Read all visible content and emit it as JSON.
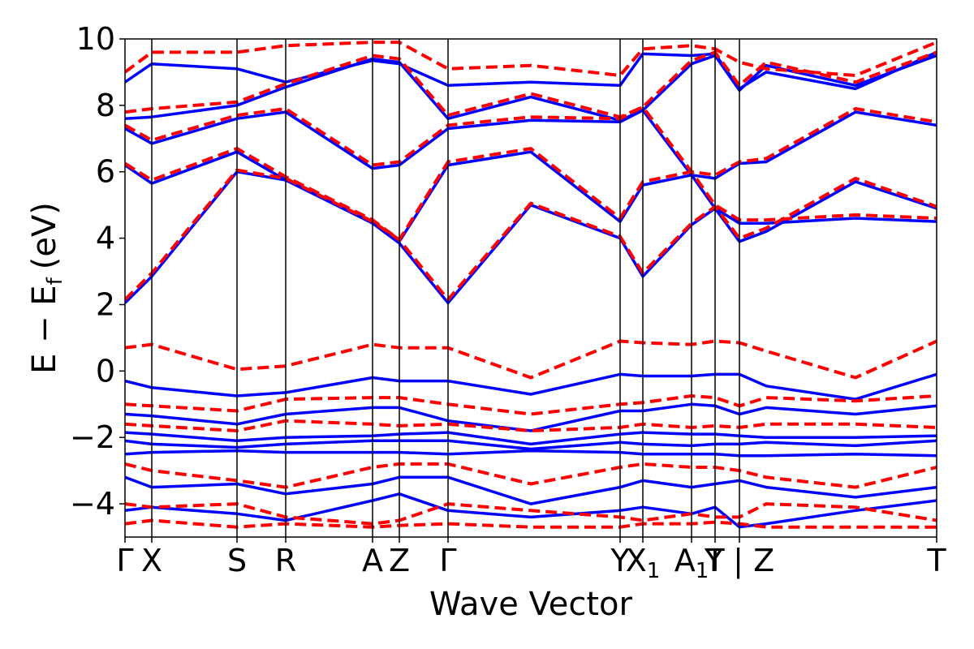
{
  "chart_data": {
    "type": "line",
    "title": "",
    "xlabel": "Wave Vector",
    "ylabel_main": "E − E",
    "ylabel_sub": "f",
    "ylabel_unit": "(eV)",
    "ylim": [
      -5,
      10
    ],
    "yticks": [
      {
        "value": -4,
        "label": "−4"
      },
      {
        "value": -2,
        "label": "−2"
      },
      {
        "value": 0,
        "label": "0"
      },
      {
        "value": 2,
        "label": "2"
      },
      {
        "value": 4,
        "label": "4"
      },
      {
        "value": 6,
        "label": "6"
      },
      {
        "value": 8,
        "label": "8"
      },
      {
        "value": 10,
        "label": "10"
      }
    ],
    "xlim": [
      0,
      1
    ],
    "kpoints": [
      {
        "x": 0.0,
        "label": "Γ",
        "sub": ""
      },
      {
        "x": 0.033,
        "label": "X",
        "sub": ""
      },
      {
        "x": 0.138,
        "label": "S",
        "sub": ""
      },
      {
        "x": 0.198,
        "label": "R",
        "sub": ""
      },
      {
        "x": 0.305,
        "label": "A",
        "sub": ""
      },
      {
        "x": 0.338,
        "label": "Z",
        "sub": ""
      },
      {
        "x": 0.398,
        "label": "Γ",
        "sub": ""
      },
      {
        "x": 0.61,
        "label": "Y",
        "sub": ""
      },
      {
        "x": 0.638,
        "label": "X",
        "sub": "1"
      },
      {
        "x": 0.698,
        "label": "A",
        "sub": "1"
      },
      {
        "x": 0.727,
        "label": "T",
        "sub": ""
      },
      {
        "x": 0.757,
        "label": "Y | Z",
        "sub": ""
      },
      {
        "x": 1.0,
        "label": "T",
        "sub": ""
      }
    ],
    "colors": {
      "series_a": "#0000ff",
      "series_b": "#ff0000"
    },
    "series": [
      {
        "style": "solid",
        "color": "#0000ff",
        "bands": [
          {
            "x": [
              0,
              0.033,
              0.138,
              0.198,
              0.305,
              0.338,
              0.398,
              0.5,
              0.61,
              0.638,
              0.698,
              0.727,
              0.757,
              0.79,
              0.9,
              1.0
            ],
            "y": [
              2.05,
              2.85,
              6.0,
              5.75,
              4.45,
              3.85,
              2.05,
              5.0,
              4.0,
              2.85,
              4.4,
              4.9,
              3.9,
              4.2,
              5.7,
              4.9
            ]
          },
          {
            "x": [
              0,
              0.033,
              0.138,
              0.198,
              0.305,
              0.338,
              0.398,
              0.5,
              0.61,
              0.638,
              0.698,
              0.727,
              0.757,
              0.79,
              0.9,
              1.0
            ],
            "y": [
              6.2,
              5.65,
              6.6,
              5.75,
              4.5,
              3.9,
              6.2,
              6.6,
              4.5,
              5.6,
              5.9,
              5.8,
              6.25,
              6.3,
              7.8,
              7.4
            ]
          },
          {
            "x": [
              0,
              0.033,
              0.138,
              0.198,
              0.305,
              0.338,
              0.398,
              0.5,
              0.61,
              0.638,
              0.698,
              0.727,
              0.757,
              0.79,
              0.9,
              1.0
            ],
            "y": [
              7.3,
              6.85,
              7.6,
              7.8,
              6.1,
              6.2,
              7.3,
              7.55,
              7.5,
              7.85,
              5.9,
              4.9,
              4.45,
              4.45,
              4.6,
              4.5
            ]
          },
          {
            "x": [
              0,
              0.033,
              0.138,
              0.198,
              0.305,
              0.338,
              0.398,
              0.5,
              0.61,
              0.638,
              0.698,
              0.727,
              0.757,
              0.79,
              0.9,
              1.0
            ],
            "y": [
              7.6,
              7.65,
              8.0,
              8.55,
              9.4,
              9.3,
              7.6,
              8.25,
              7.55,
              7.85,
              9.25,
              9.5,
              8.45,
              9.2,
              8.6,
              9.5
            ]
          },
          {
            "x": [
              0,
              0.033,
              0.138,
              0.198,
              0.305,
              0.338,
              0.398,
              0.5,
              0.61,
              0.638,
              0.698,
              0.727,
              0.757,
              0.79,
              0.9,
              1.0
            ],
            "y": [
              8.7,
              9.25,
              9.1,
              8.7,
              9.35,
              9.25,
              8.6,
              8.7,
              8.6,
              9.55,
              9.5,
              9.55,
              8.5,
              9.0,
              8.5,
              9.6
            ]
          },
          {
            "x": [
              0,
              0.033,
              0.138,
              0.198,
              0.305,
              0.338,
              0.398,
              0.5,
              0.61,
              0.638,
              0.698,
              0.727,
              0.757,
              0.79,
              0.9,
              1.0
            ],
            "y": [
              -0.3,
              -0.5,
              -0.75,
              -0.65,
              -0.2,
              -0.3,
              -0.3,
              -0.7,
              -0.1,
              -0.15,
              -0.15,
              -0.1,
              -0.1,
              -0.45,
              -0.85,
              -0.1
            ]
          },
          {
            "x": [
              0,
              0.033,
              0.138,
              0.198,
              0.305,
              0.338,
              0.398,
              0.5,
              0.61,
              0.638,
              0.698,
              0.727,
              0.757,
              0.79,
              0.9,
              1.0
            ],
            "y": [
              -1.3,
              -1.35,
              -1.6,
              -1.3,
              -1.1,
              -1.1,
              -1.5,
              -1.8,
              -1.2,
              -1.2,
              -1.0,
              -1.05,
              -1.3,
              -1.1,
              -1.3,
              -1.05
            ]
          },
          {
            "x": [
              0,
              0.033,
              0.138,
              0.198,
              0.305,
              0.338,
              0.398,
              0.5,
              0.61,
              0.638,
              0.698,
              0.727,
              0.757,
              0.79,
              0.9,
              1.0
            ],
            "y": [
              -1.85,
              -1.9,
              -2.1,
              -2.0,
              -1.95,
              -1.9,
              -1.85,
              -2.2,
              -1.9,
              -1.85,
              -1.9,
              -1.9,
              -1.95,
              -2.0,
              -2.0,
              -1.95
            ]
          },
          {
            "x": [
              0,
              0.033,
              0.138,
              0.198,
              0.305,
              0.338,
              0.398,
              0.5,
              0.61,
              0.638,
              0.698,
              0.727,
              0.757,
              0.79,
              0.9,
              1.0
            ],
            "y": [
              -2.1,
              -2.2,
              -2.3,
              -2.2,
              -2.1,
              -2.1,
              -2.1,
              -2.35,
              -2.15,
              -2.2,
              -2.25,
              -2.2,
              -2.2,
              -2.15,
              -2.25,
              -2.1
            ]
          },
          {
            "x": [
              0,
              0.033,
              0.138,
              0.198,
              0.305,
              0.338,
              0.398,
              0.5,
              0.61,
              0.638,
              0.698,
              0.727,
              0.757,
              0.79,
              0.9,
              1.0
            ],
            "y": [
              -2.5,
              -2.45,
              -2.4,
              -2.45,
              -2.45,
              -2.45,
              -2.5,
              -2.4,
              -2.45,
              -2.5,
              -2.5,
              -2.5,
              -2.55,
              -2.55,
              -2.5,
              -2.55
            ]
          },
          {
            "x": [
              0,
              0.033,
              0.138,
              0.198,
              0.305,
              0.338,
              0.398,
              0.5,
              0.61,
              0.638,
              0.698,
              0.727,
              0.757,
              0.79,
              0.9,
              1.0
            ],
            "y": [
              -3.2,
              -3.5,
              -3.4,
              -3.7,
              -3.4,
              -3.2,
              -3.2,
              -4.0,
              -3.5,
              -3.3,
              -3.5,
              -3.4,
              -3.3,
              -3.5,
              -3.8,
              -3.5
            ]
          },
          {
            "x": [
              0,
              0.033,
              0.138,
              0.198,
              0.305,
              0.338,
              0.398,
              0.5,
              0.61,
              0.638,
              0.698,
              0.727,
              0.757,
              0.79,
              0.9,
              1.0
            ],
            "y": [
              -4.2,
              -4.1,
              -4.3,
              -4.5,
              -3.9,
              -3.7,
              -4.2,
              -4.4,
              -4.2,
              -4.1,
              -4.3,
              -4.1,
              -4.7,
              -4.6,
              -4.2,
              -3.9
            ]
          }
        ]
      },
      {
        "style": "dashed",
        "color": "#ff0000",
        "bands": [
          {
            "x": [
              0,
              0.033,
              0.138,
              0.198,
              0.305,
              0.338,
              0.398,
              0.5,
              0.61,
              0.638,
              0.698,
              0.727,
              0.757,
              0.79,
              0.9,
              1.0
            ],
            "y": [
              2.15,
              2.95,
              6.05,
              5.8,
              4.5,
              3.95,
              2.15,
              5.05,
              4.05,
              2.95,
              4.45,
              4.95,
              4.0,
              4.3,
              5.8,
              4.95
            ]
          },
          {
            "x": [
              0,
              0.033,
              0.138,
              0.198,
              0.305,
              0.338,
              0.398,
              0.5,
              0.61,
              0.638,
              0.698,
              0.727,
              0.757,
              0.79,
              0.9,
              1.0
            ],
            "y": [
              6.25,
              5.75,
              6.7,
              5.85,
              4.55,
              3.95,
              6.3,
              6.7,
              4.6,
              5.7,
              6.0,
              5.9,
              6.3,
              6.4,
              7.9,
              7.5
            ]
          },
          {
            "x": [
              0,
              0.033,
              0.138,
              0.198,
              0.305,
              0.338,
              0.398,
              0.5,
              0.61,
              0.638,
              0.698,
              0.727,
              0.757,
              0.79,
              0.9,
              1.0
            ],
            "y": [
              7.4,
              6.95,
              7.7,
              7.9,
              6.2,
              6.3,
              7.4,
              7.65,
              7.6,
              7.95,
              6.0,
              5.0,
              4.55,
              4.55,
              4.7,
              4.6
            ]
          },
          {
            "x": [
              0,
              0.033,
              0.138,
              0.198,
              0.305,
              0.338,
              0.398,
              0.5,
              0.61,
              0.638,
              0.698,
              0.727,
              0.757,
              0.79,
              0.9,
              1.0
            ],
            "y": [
              7.8,
              7.9,
              8.1,
              8.65,
              9.5,
              9.4,
              7.7,
              8.35,
              7.65,
              7.95,
              9.35,
              9.6,
              8.6,
              9.3,
              8.7,
              9.6
            ]
          },
          {
            "x": [
              0,
              0.033,
              0.138,
              0.198,
              0.305,
              0.338,
              0.398,
              0.5,
              0.61,
              0.638,
              0.698,
              0.727,
              0.757,
              0.79,
              0.9,
              1.0
            ],
            "y": [
              9.0,
              9.6,
              9.6,
              9.8,
              9.9,
              9.9,
              9.1,
              9.2,
              8.9,
              9.7,
              9.8,
              9.7,
              9.3,
              9.1,
              8.9,
              9.9
            ]
          },
          {
            "x": [
              0,
              0.033,
              0.138,
              0.198,
              0.305,
              0.338,
              0.398,
              0.5,
              0.61,
              0.638,
              0.698,
              0.727,
              0.757,
              0.79,
              0.9,
              1.0
            ],
            "y": [
              0.7,
              0.8,
              0.05,
              0.15,
              0.8,
              0.7,
              0.7,
              -0.2,
              0.9,
              0.85,
              0.8,
              0.9,
              0.85,
              0.6,
              -0.2,
              0.9
            ]
          },
          {
            "x": [
              0,
              0.033,
              0.138,
              0.198,
              0.305,
              0.338,
              0.398,
              0.5,
              0.61,
              0.638,
              0.698,
              0.727,
              0.757,
              0.79,
              0.9,
              1.0
            ],
            "y": [
              -1.0,
              -1.05,
              -1.2,
              -0.85,
              -0.8,
              -0.8,
              -1.0,
              -1.3,
              -1.0,
              -0.95,
              -0.75,
              -0.8,
              -1.05,
              -0.8,
              -0.9,
              -0.75
            ]
          },
          {
            "x": [
              0,
              0.033,
              0.138,
              0.198,
              0.305,
              0.338,
              0.398,
              0.5,
              0.61,
              0.638,
              0.698,
              0.727,
              0.757,
              0.79,
              0.9,
              1.0
            ],
            "y": [
              -1.6,
              -1.65,
              -1.8,
              -1.5,
              -1.6,
              -1.65,
              -1.6,
              -1.8,
              -1.7,
              -1.6,
              -1.7,
              -1.65,
              -1.7,
              -1.6,
              -1.6,
              -1.7
            ]
          },
          {
            "x": [
              0,
              0.033,
              0.138,
              0.198,
              0.305,
              0.338,
              0.398,
              0.5,
              0.61,
              0.638,
              0.698,
              0.727,
              0.757,
              0.79,
              0.9,
              1.0
            ],
            "y": [
              -2.8,
              -3.0,
              -3.3,
              -3.5,
              -2.9,
              -2.8,
              -2.8,
              -3.4,
              -2.9,
              -2.8,
              -2.9,
              -2.9,
              -3.0,
              -3.2,
              -3.5,
              -2.9
            ]
          },
          {
            "x": [
              0,
              0.033,
              0.138,
              0.198,
              0.305,
              0.338,
              0.398,
              0.5,
              0.61,
              0.638,
              0.698,
              0.727,
              0.757,
              0.79,
              0.9,
              1.0
            ],
            "y": [
              -4.0,
              -4.1,
              -4.0,
              -4.4,
              -4.6,
              -4.5,
              -4.0,
              -4.2,
              -4.4,
              -4.5,
              -4.3,
              -4.4,
              -4.4,
              -4.0,
              -4.1,
              -4.5
            ]
          },
          {
            "x": [
              0,
              0.033,
              0.138,
              0.198,
              0.305,
              0.338,
              0.398,
              0.5,
              0.61,
              0.638,
              0.698,
              0.727,
              0.757,
              0.79,
              0.9,
              1.0
            ],
            "y": [
              -4.6,
              -4.5,
              -4.7,
              -4.6,
              -4.7,
              -4.65,
              -4.6,
              -4.7,
              -4.7,
              -4.6,
              -4.6,
              -4.55,
              -4.6,
              -4.7,
              -4.7,
              -4.7
            ]
          }
        ]
      }
    ],
    "grid": false,
    "legend": "none"
  }
}
